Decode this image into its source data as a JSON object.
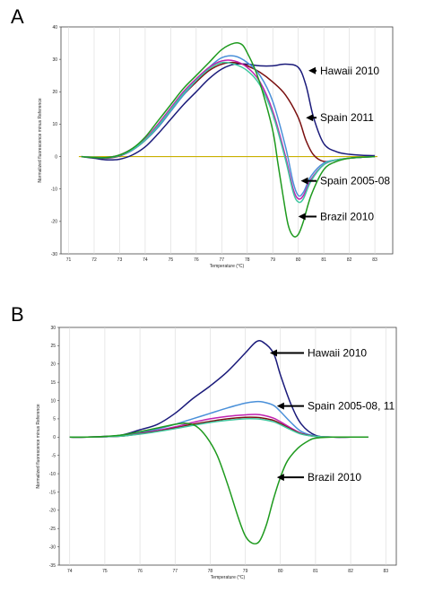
{
  "chart_data": [
    {
      "panel_label": "A",
      "type": "line",
      "xlabel": "Temperature (°C)",
      "ylabel": "Normalized fluorescence minus Reference",
      "xlim": [
        70.7,
        83.7
      ],
      "ylim": [
        -30,
        40
      ],
      "x_ticks": [
        "71",
        "72",
        "73",
        "74",
        "75",
        "76",
        "77",
        "78",
        "79",
        "80",
        "81",
        "82",
        "83"
      ],
      "y_ticks": [
        "40",
        "30",
        "20",
        "10",
        "0",
        "-10",
        "-20",
        "-30"
      ],
      "grid": true,
      "baseline": {
        "y": 0,
        "color": "#c9b000"
      },
      "series": [
        {
          "color": "#1a1a7a",
          "x": [
            71.5,
            72,
            72.5,
            73,
            73.5,
            74,
            74.5,
            75,
            75.5,
            76,
            76.5,
            77,
            77.5,
            78,
            78.5,
            79,
            79.5,
            80,
            80.3,
            80.6,
            81,
            81.5,
            82,
            82.5,
            83
          ],
          "y": [
            0,
            -0.5,
            -1,
            -0.8,
            0.5,
            3,
            7,
            11.5,
            16,
            20,
            24,
            27,
            28.5,
            28.5,
            28,
            28,
            28.5,
            27.5,
            22,
            12,
            4,
            1.5,
            0.7,
            0.4,
            0.3
          ]
        },
        {
          "color": "#7a1010",
          "x": [
            71.5,
            72,
            72.5,
            73,
            73.5,
            74,
            74.5,
            75,
            75.5,
            76,
            76.5,
            77,
            77.5,
            78,
            78.5,
            79,
            79.5,
            80,
            80.3,
            80.6,
            81,
            81.5,
            82,
            82.5,
            83
          ],
          "y": [
            0,
            -0.3,
            -0.5,
            0.2,
            2,
            5,
            9,
            14,
            19,
            23,
            26.5,
            28.5,
            29,
            28,
            26,
            23,
            19,
            12,
            5,
            0.5,
            -1.5,
            -1,
            -0.5,
            -0.2,
            0
          ]
        },
        {
          "color": "#4a90d9",
          "x": [
            71.5,
            72,
            72.5,
            73,
            73.5,
            74,
            74.5,
            75,
            75.5,
            76,
            76.5,
            77,
            77.5,
            78,
            78.5,
            79,
            79.5,
            79.8,
            80,
            80.2,
            80.5,
            81,
            81.5,
            82,
            82.5,
            83
          ],
          "y": [
            0,
            -0.3,
            -0.4,
            0.3,
            2,
            5,
            9,
            14,
            19,
            23.5,
            27.5,
            30.5,
            31,
            29,
            25,
            17,
            3,
            -8,
            -12,
            -11,
            -6,
            -2,
            -1,
            -0.5,
            -0.2,
            0
          ]
        },
        {
          "color": "#c020b0",
          "x": [
            71.5,
            72,
            72.5,
            73,
            73.5,
            74,
            74.5,
            75,
            75.5,
            76,
            76.5,
            77,
            77.5,
            78,
            78.5,
            79,
            79.5,
            79.8,
            80,
            80.2,
            80.5,
            81,
            81.5,
            82,
            82.5,
            83
          ],
          "y": [
            0,
            -0.2,
            -0.3,
            0.5,
            2.5,
            5.5,
            10,
            15,
            20,
            24,
            27.5,
            29.5,
            29.5,
            27.5,
            23,
            14,
            0,
            -10,
            -13,
            -12,
            -7,
            -2.5,
            -1,
            -0.5,
            -0.2,
            0
          ]
        },
        {
          "color": "#40c8a0",
          "x": [
            71.5,
            72,
            72.5,
            73,
            73.5,
            74,
            74.5,
            75,
            75.5,
            76,
            76.5,
            77,
            77.5,
            78,
            78.5,
            79,
            79.5,
            79.8,
            80,
            80.2,
            80.5,
            81,
            81.5,
            82,
            82.5,
            83
          ],
          "y": [
            0,
            -0.2,
            -0.3,
            0.4,
            2.2,
            5.2,
            9.5,
            14.5,
            19.5,
            23.5,
            27,
            29,
            28.5,
            26.5,
            22,
            13,
            -1,
            -11,
            -14,
            -13,
            -7.5,
            -2.5,
            -1,
            -0.5,
            -0.2,
            0
          ]
        },
        {
          "color": "#1e9a1e",
          "x": [
            71.5,
            72,
            72.5,
            73,
            73.5,
            74,
            74.5,
            75,
            75.5,
            76,
            76.5,
            77,
            77.5,
            77.8,
            78,
            78.3,
            78.6,
            79,
            79.2,
            79.4,
            79.6,
            79.8,
            80,
            80.2,
            80.5,
            81,
            81.5,
            82,
            82.5,
            83
          ],
          "y": [
            0,
            -0.3,
            -0.3,
            0.5,
            2.5,
            6,
            11,
            16,
            21,
            25,
            29,
            33,
            35,
            34.5,
            32,
            27,
            20,
            8,
            -2,
            -12,
            -21,
            -24.5,
            -24,
            -20,
            -12,
            -4,
            -1.5,
            -0.5,
            -0.2,
            0
          ]
        }
      ],
      "annotations": [
        {
          "text": "Hawaii 2010",
          "x": 80.4,
          "y": 26.5
        },
        {
          "text": "Spain 2011",
          "x": 80.3,
          "y": 12
        },
        {
          "text": "Spain 2005-08",
          "x": 80.1,
          "y": -7.5
        },
        {
          "text": "Brazil 2010",
          "x": 80.0,
          "y": -18.5
        }
      ]
    },
    {
      "panel_label": "B",
      "type": "line",
      "xlabel": "Temperature (°C)",
      "ylabel": "Normalized fluorescence minus Reference",
      "xlim": [
        73.7,
        83.3
      ],
      "ylim": [
        -35,
        30
      ],
      "x_ticks": [
        "74",
        "75",
        "76",
        "77",
        "78",
        "79",
        "80",
        "81",
        "82",
        "83"
      ],
      "y_ticks": [
        "30",
        "25",
        "20",
        "15",
        "10",
        "5",
        "0",
        "-5",
        "-10",
        "-15",
        "-20",
        "-25",
        "-30",
        "-35"
      ],
      "grid": true,
      "baseline": null,
      "series": [
        {
          "color": "#1a1a7a",
          "x": [
            74,
            74.5,
            75,
            75.5,
            76,
            76.5,
            77,
            77.5,
            78,
            78.5,
            79,
            79.3,
            79.5,
            79.8,
            80,
            80.3,
            80.6,
            81,
            81.5,
            82,
            82.5
          ],
          "y": [
            0,
            0,
            0.2,
            0.6,
            2,
            3.5,
            6.5,
            10.5,
            14,
            18,
            23,
            26,
            26,
            23,
            17,
            9,
            3.5,
            0.5,
            0,
            0,
            0
          ]
        },
        {
          "color": "#4a90d9",
          "x": [
            74,
            74.5,
            75,
            75.5,
            76,
            76.5,
            77,
            77.5,
            78,
            78.5,
            79,
            79.3,
            79.5,
            79.8,
            80,
            80.3,
            80.6,
            81,
            81.5,
            82,
            82.5
          ],
          "y": [
            0,
            0,
            0.1,
            0.4,
            1.2,
            2.2,
            3.5,
            5,
            6.5,
            8,
            9.3,
            9.7,
            9.6,
            8.7,
            7,
            4,
            1.5,
            0.3,
            0,
            0,
            0
          ]
        },
        {
          "color": "#c020b0",
          "x": [
            74,
            74.5,
            75,
            75.5,
            76,
            76.5,
            77,
            77.5,
            78,
            78.5,
            79,
            79.3,
            79.5,
            79.8,
            80,
            80.3,
            80.6,
            81,
            81.5,
            82,
            82.5
          ],
          "y": [
            0,
            0,
            0.1,
            0.3,
            1,
            1.8,
            2.8,
            4,
            5,
            5.7,
            6.1,
            6.2,
            6,
            5.2,
            4.2,
            2.5,
            1,
            0.2,
            0,
            0,
            0
          ]
        },
        {
          "color": "#7a1010",
          "x": [
            74,
            74.5,
            75,
            75.5,
            76,
            76.5,
            77,
            77.5,
            78,
            78.5,
            79,
            79.3,
            79.5,
            79.8,
            80,
            80.3,
            80.6,
            81,
            81.5,
            82,
            82.5
          ],
          "y": [
            0,
            0,
            0.1,
            0.3,
            0.9,
            1.6,
            2.5,
            3.5,
            4.3,
            5,
            5.4,
            5.4,
            5.2,
            4.6,
            3.7,
            2.2,
            0.9,
            0.2,
            0,
            0,
            0
          ]
        },
        {
          "color": "#40c8a0",
          "x": [
            74,
            74.5,
            75,
            75.5,
            76,
            76.5,
            77,
            77.5,
            78,
            78.5,
            79,
            79.3,
            79.5,
            79.8,
            80,
            80.3,
            80.6,
            81,
            81.5,
            82,
            82.5
          ],
          "y": [
            0,
            0,
            0.1,
            0.3,
            0.8,
            1.5,
            2.3,
            3.2,
            4,
            4.6,
            5,
            5,
            4.8,
            4.2,
            3.4,
            2,
            0.8,
            0.2,
            0,
            0,
            0
          ]
        },
        {
          "color": "#1e9a1e",
          "x": [
            74,
            74.5,
            75,
            75.5,
            76,
            76.5,
            77,
            77.3,
            77.6,
            77.9,
            78.2,
            78.5,
            78.8,
            79,
            79.2,
            79.4,
            79.6,
            79.8,
            80,
            80.2,
            80.5,
            80.8,
            81,
            81.5,
            82,
            82.5
          ],
          "y": [
            0,
            0,
            0.2,
            0.6,
            1.5,
            2.5,
            3.5,
            3.8,
            3,
            0,
            -5,
            -13,
            -22,
            -27,
            -29,
            -28.5,
            -24,
            -17,
            -11,
            -6.5,
            -3,
            -1,
            -0.3,
            0,
            0,
            0
          ]
        }
      ],
      "annotations": [
        {
          "text": "Hawaii 2010",
          "x": 79.7,
          "y": 23
        },
        {
          "text": "Spain 2005-08, 11",
          "x": 79.9,
          "y": 8.5
        },
        {
          "text": "Brazil 2010",
          "x": 79.9,
          "y": -11
        }
      ]
    }
  ]
}
